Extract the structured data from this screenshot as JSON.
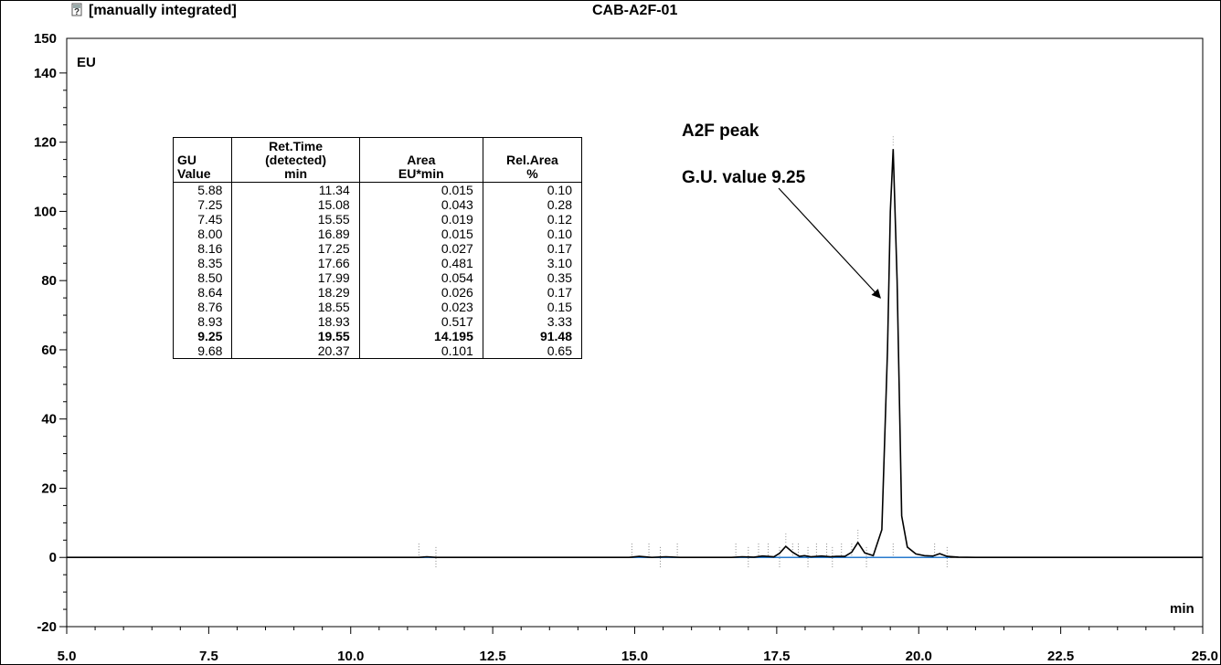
{
  "header": {
    "icon": "question-mark-icon",
    "status_label": "[manually integrated]",
    "sample_name": "CAB-A2F-01"
  },
  "chart_data": {
    "type": "line",
    "title": "CAB-A2F-01",
    "xlabel": "min",
    "ylabel": "EU",
    "xlim": [
      5.0,
      25.0
    ],
    "ylim": [
      -20,
      150
    ],
    "x_tick_labels": [
      "5.0",
      "7.5",
      "10.0",
      "12.5",
      "15.0",
      "17.5",
      "20.0",
      "22.5",
      "25.0"
    ],
    "y_tick_labels": [
      "-20",
      "0",
      "20",
      "40",
      "60",
      "80",
      "100",
      "120",
      "140",
      "150"
    ],
    "grid": false,
    "line_color": "#000000",
    "baseline_color": "#1e7ad6",
    "series": [
      {
        "x": [
          5.0,
          11.2,
          11.34,
          11.5,
          14.9,
          15.08,
          15.3,
          15.55,
          15.8,
          16.7,
          16.89,
          17.1,
          17.25,
          17.45,
          17.55,
          17.66,
          17.78,
          17.9,
          17.99,
          18.1,
          18.29,
          18.45,
          18.55,
          18.7,
          18.82,
          18.93,
          19.05,
          19.2,
          19.35,
          19.45,
          19.5,
          19.55,
          19.62,
          19.7,
          19.8,
          19.95,
          20.1,
          20.25,
          20.37,
          20.5,
          20.7,
          21.0,
          25.0
        ],
        "y": [
          0,
          0,
          0.2,
          0,
          0,
          0.3,
          0,
          0.2,
          0,
          0,
          0.2,
          0.1,
          0.4,
          0.2,
          1.2,
          3.2,
          1.5,
          0.3,
          0.5,
          0.2,
          0.4,
          0.2,
          0.3,
          0.3,
          1.5,
          4.3,
          1.3,
          0.5,
          8,
          60,
          100,
          118,
          80,
          12,
          3,
          1,
          0.5,
          0.4,
          1.1,
          0.3,
          0.1,
          0,
          0
        ]
      }
    ],
    "integration_marks_x": [
      11.2,
      11.5,
      14.95,
      15.25,
      15.45,
      15.75,
      16.78,
      17.0,
      17.18,
      17.35,
      17.55,
      17.78,
      17.88,
      18.05,
      18.2,
      18.38,
      18.48,
      18.64,
      18.82,
      19.08,
      19.55,
      20.28,
      20.5
    ],
    "annotations": [
      {
        "lines": [
          "A2F peak",
          "G.U. value 9.25"
        ],
        "points_to_x": 19.55,
        "points_to_y": 75
      }
    ],
    "table": {
      "headers": [
        [
          "GU",
          "Value"
        ],
        [
          "Ret.Time",
          "(detected)",
          "min"
        ],
        [
          "Area",
          "EU*min"
        ],
        [
          "Rel.Area",
          "%"
        ]
      ],
      "rows": [
        [
          "5.88",
          "11.34",
          "0.015",
          "0.10"
        ],
        [
          "7.25",
          "15.08",
          "0.043",
          "0.28"
        ],
        [
          "7.45",
          "15.55",
          "0.019",
          "0.12"
        ],
        [
          "8.00",
          "16.89",
          "0.015",
          "0.10"
        ],
        [
          "8.16",
          "17.25",
          "0.027",
          "0.17"
        ],
        [
          "8.35",
          "17.66",
          "0.481",
          "3.10"
        ],
        [
          "8.50",
          "17.99",
          "0.054",
          "0.35"
        ],
        [
          "8.64",
          "18.29",
          "0.026",
          "0.17"
        ],
        [
          "8.76",
          "18.55",
          "0.023",
          "0.15"
        ],
        [
          "8.93",
          "18.93",
          "0.517",
          "3.33"
        ],
        [
          "9.25",
          "19.55",
          "14.195",
          "91.48"
        ],
        [
          "9.68",
          "20.37",
          "0.101",
          "0.65"
        ]
      ],
      "bold_row": 10
    }
  }
}
